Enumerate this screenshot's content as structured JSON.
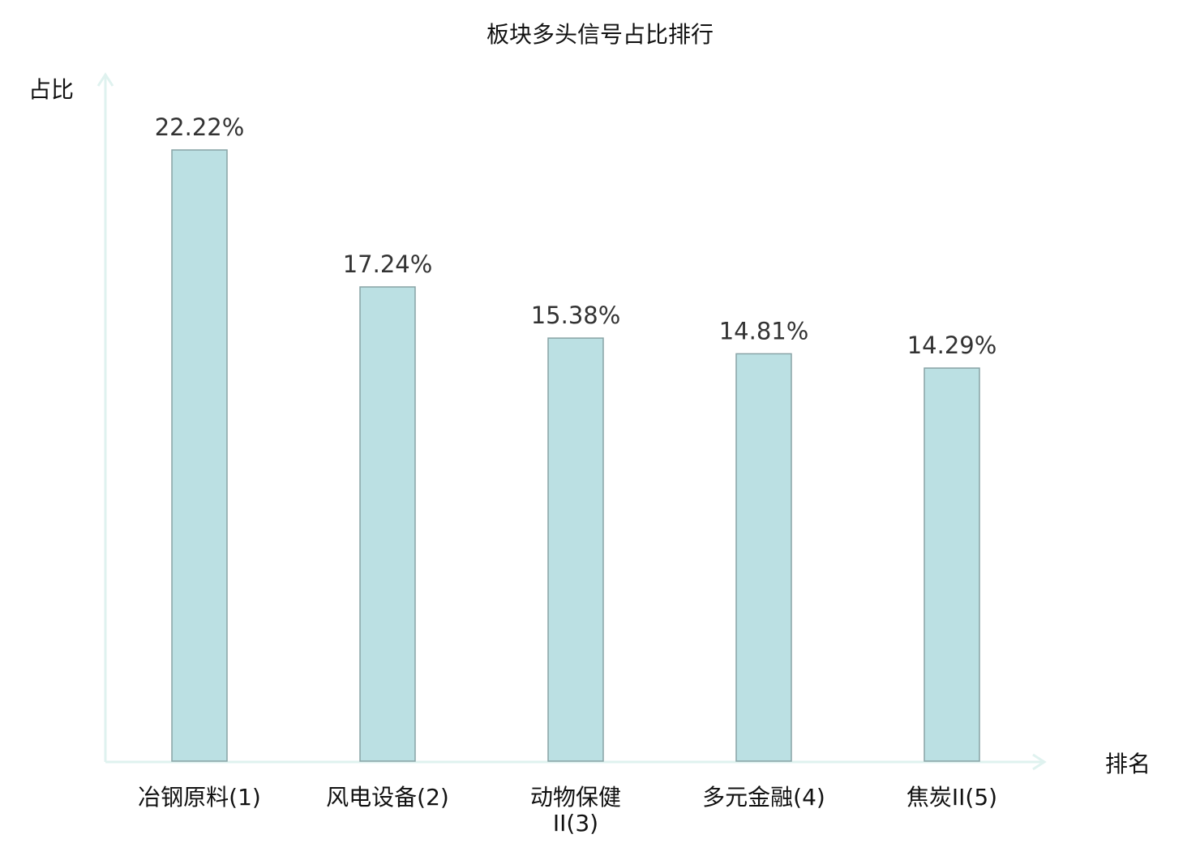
{
  "chart_data": {
    "type": "bar",
    "title": "板块多头信号占比排行",
    "xlabel": "排名",
    "ylabel": "占比",
    "categories": [
      [
        "冶钢原料(1)"
      ],
      [
        "风电设备(2)"
      ],
      [
        "动物保健",
        "II(3)"
      ],
      [
        "多元金融(4)"
      ],
      [
        "焦炭II(5)"
      ]
    ],
    "values": [
      22.22,
      17.24,
      15.38,
      14.81,
      14.29
    ],
    "value_labels": [
      "22.22%",
      "17.24%",
      "15.38%",
      "14.81%",
      "14.29%"
    ],
    "ylim": [
      0,
      25
    ],
    "grid": false,
    "highlight_index": 1,
    "colors": {
      "bar_fill": "#bbe0e3",
      "bar_stroke": "#88a3a5",
      "axis": "#dff2ef",
      "highlight": "#ff0000",
      "text": "#111111"
    }
  }
}
